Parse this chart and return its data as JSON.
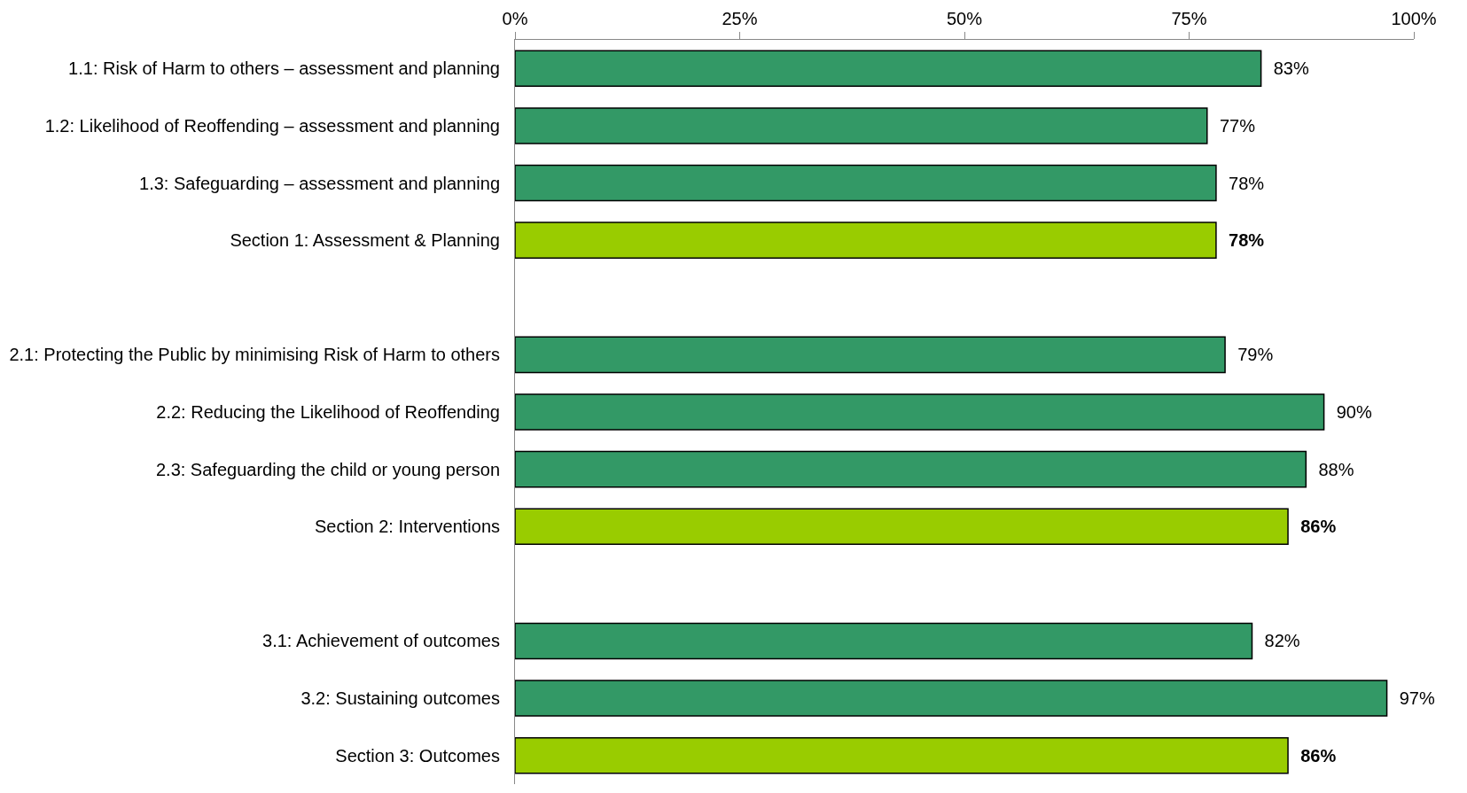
{
  "chart_data": {
    "type": "bar",
    "orientation": "horizontal",
    "categories": [
      "1.1: Risk of Harm to others – assessment and planning",
      "1.2: Likelihood of Reoffending – assessment and planning",
      "1.3: Safeguarding – assessment and planning",
      "Section 1: Assessment & Planning",
      null,
      "2.1: Protecting the Public by minimising Risk of Harm to others",
      "2.2: Reducing the Likelihood of Reoffending",
      "2.3: Safeguarding the child or young person",
      "Section 2: Interventions",
      null,
      "3.1: Achievement of outcomes",
      "3.2: Sustaining outcomes",
      "Section 3: Outcomes"
    ],
    "values": [
      83,
      77,
      78,
      78,
      null,
      79,
      90,
      88,
      86,
      null,
      82,
      97,
      86
    ],
    "value_labels": [
      "83%",
      "77%",
      "78%",
      "78%",
      null,
      "79%",
      "90%",
      "88%",
      "86%",
      null,
      "82%",
      "97%",
      "86%"
    ],
    "colors": [
      "#339966",
      "#339966",
      "#339966",
      "#99cc00",
      null,
      "#339966",
      "#339966",
      "#339966",
      "#99cc00",
      null,
      "#339966",
      "#339966",
      "#99cc00"
    ],
    "xlim": [
      0,
      100
    ],
    "xticks": [
      {
        "value": 0,
        "label": "0%"
      },
      {
        "value": 25,
        "label": "25%"
      },
      {
        "value": 50,
        "label": "50%"
      },
      {
        "value": 75,
        "label": "75%"
      },
      {
        "value": 100,
        "label": "100%"
      }
    ],
    "grid": false
  }
}
